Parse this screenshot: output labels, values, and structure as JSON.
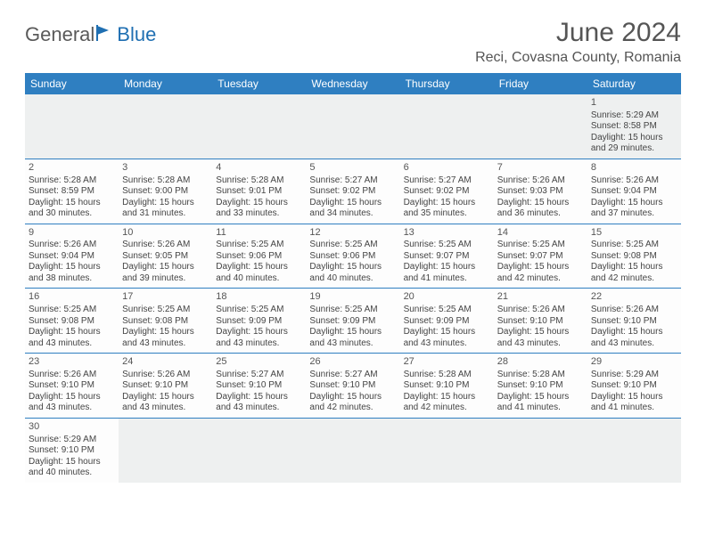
{
  "logo": {
    "part1": "General",
    "part2": "Blue"
  },
  "title": "June 2024",
  "location": "Reci, Covasna County, Romania",
  "colors": {
    "header_bg": "#2f7fc1",
    "header_text": "#ffffff",
    "rule": "#2f7fc1",
    "logo_gray": "#5a5a5a",
    "logo_blue": "#1f6fb2",
    "body_text": "#444444",
    "page_bg": "#ffffff"
  },
  "day_headers": [
    "Sunday",
    "Monday",
    "Tuesday",
    "Wednesday",
    "Thursday",
    "Friday",
    "Saturday"
  ],
  "weeks": [
    [
      null,
      null,
      null,
      null,
      null,
      null,
      {
        "n": "1",
        "sr": "5:29 AM",
        "ss": "8:58 PM",
        "dl": "15 hours and 29 minutes."
      }
    ],
    [
      {
        "n": "2",
        "sr": "5:28 AM",
        "ss": "8:59 PM",
        "dl": "15 hours and 30 minutes."
      },
      {
        "n": "3",
        "sr": "5:28 AM",
        "ss": "9:00 PM",
        "dl": "15 hours and 31 minutes."
      },
      {
        "n": "4",
        "sr": "5:28 AM",
        "ss": "9:01 PM",
        "dl": "15 hours and 33 minutes."
      },
      {
        "n": "5",
        "sr": "5:27 AM",
        "ss": "9:02 PM",
        "dl": "15 hours and 34 minutes."
      },
      {
        "n": "6",
        "sr": "5:27 AM",
        "ss": "9:02 PM",
        "dl": "15 hours and 35 minutes."
      },
      {
        "n": "7",
        "sr": "5:26 AM",
        "ss": "9:03 PM",
        "dl": "15 hours and 36 minutes."
      },
      {
        "n": "8",
        "sr": "5:26 AM",
        "ss": "9:04 PM",
        "dl": "15 hours and 37 minutes."
      }
    ],
    [
      {
        "n": "9",
        "sr": "5:26 AM",
        "ss": "9:04 PM",
        "dl": "15 hours and 38 minutes."
      },
      {
        "n": "10",
        "sr": "5:26 AM",
        "ss": "9:05 PM",
        "dl": "15 hours and 39 minutes."
      },
      {
        "n": "11",
        "sr": "5:25 AM",
        "ss": "9:06 PM",
        "dl": "15 hours and 40 minutes."
      },
      {
        "n": "12",
        "sr": "5:25 AM",
        "ss": "9:06 PM",
        "dl": "15 hours and 40 minutes."
      },
      {
        "n": "13",
        "sr": "5:25 AM",
        "ss": "9:07 PM",
        "dl": "15 hours and 41 minutes."
      },
      {
        "n": "14",
        "sr": "5:25 AM",
        "ss": "9:07 PM",
        "dl": "15 hours and 42 minutes."
      },
      {
        "n": "15",
        "sr": "5:25 AM",
        "ss": "9:08 PM",
        "dl": "15 hours and 42 minutes."
      }
    ],
    [
      {
        "n": "16",
        "sr": "5:25 AM",
        "ss": "9:08 PM",
        "dl": "15 hours and 43 minutes."
      },
      {
        "n": "17",
        "sr": "5:25 AM",
        "ss": "9:08 PM",
        "dl": "15 hours and 43 minutes."
      },
      {
        "n": "18",
        "sr": "5:25 AM",
        "ss": "9:09 PM",
        "dl": "15 hours and 43 minutes."
      },
      {
        "n": "19",
        "sr": "5:25 AM",
        "ss": "9:09 PM",
        "dl": "15 hours and 43 minutes."
      },
      {
        "n": "20",
        "sr": "5:25 AM",
        "ss": "9:09 PM",
        "dl": "15 hours and 43 minutes."
      },
      {
        "n": "21",
        "sr": "5:26 AM",
        "ss": "9:10 PM",
        "dl": "15 hours and 43 minutes."
      },
      {
        "n": "22",
        "sr": "5:26 AM",
        "ss": "9:10 PM",
        "dl": "15 hours and 43 minutes."
      }
    ],
    [
      {
        "n": "23",
        "sr": "5:26 AM",
        "ss": "9:10 PM",
        "dl": "15 hours and 43 minutes."
      },
      {
        "n": "24",
        "sr": "5:26 AM",
        "ss": "9:10 PM",
        "dl": "15 hours and 43 minutes."
      },
      {
        "n": "25",
        "sr": "5:27 AM",
        "ss": "9:10 PM",
        "dl": "15 hours and 43 minutes."
      },
      {
        "n": "26",
        "sr": "5:27 AM",
        "ss": "9:10 PM",
        "dl": "15 hours and 42 minutes."
      },
      {
        "n": "27",
        "sr": "5:28 AM",
        "ss": "9:10 PM",
        "dl": "15 hours and 42 minutes."
      },
      {
        "n": "28",
        "sr": "5:28 AM",
        "ss": "9:10 PM",
        "dl": "15 hours and 41 minutes."
      },
      {
        "n": "29",
        "sr": "5:29 AM",
        "ss": "9:10 PM",
        "dl": "15 hours and 41 minutes."
      }
    ],
    [
      {
        "n": "30",
        "sr": "5:29 AM",
        "ss": "9:10 PM",
        "dl": "15 hours and 40 minutes."
      },
      null,
      null,
      null,
      null,
      null,
      null
    ]
  ],
  "labels": {
    "sunrise": "Sunrise: ",
    "sunset": "Sunset: ",
    "daylight": "Daylight: "
  }
}
